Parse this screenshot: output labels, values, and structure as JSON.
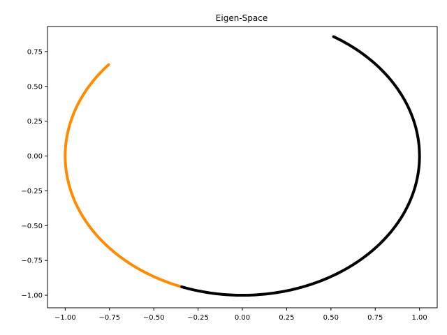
{
  "chart_data": {
    "type": "scatter",
    "title": "Eigen-Space",
    "xlabel": "",
    "ylabel": "",
    "xlim": [
      -1.1,
      1.1
    ],
    "ylim": [
      -1.09,
      0.93
    ],
    "grid": false,
    "x_ticks": [
      -1.0,
      -0.75,
      -0.5,
      -0.25,
      0.0,
      0.25,
      0.5,
      0.75,
      1.0
    ],
    "x_tick_labels": [
      "−1.00",
      "−0.75",
      "−0.50",
      "−0.25",
      "0.00",
      "0.25",
      "0.50",
      "0.75",
      "1.00"
    ],
    "y_ticks": [
      -1.0,
      -0.75,
      -0.5,
      -0.25,
      0.0,
      0.25,
      0.5,
      0.75
    ],
    "y_tick_labels": [
      "−1.00",
      "−0.75",
      "−0.50",
      "−0.25",
      "0.00",
      "0.25",
      "0.50",
      "0.75"
    ],
    "series": [
      {
        "color": "#ff8c00",
        "shape": "unit-circle arc",
        "angle_start_deg": 139,
        "angle_end_deg": 250,
        "endpoints": [
          [
            -0.75,
            0.66
          ],
          [
            -0.34,
            -0.94
          ]
        ]
      },
      {
        "color": "#000000",
        "shape": "unit-circle arc",
        "angle_start_deg": 250,
        "angle_end_deg": 419,
        "endpoints": [
          [
            -0.34,
            -0.94
          ],
          [
            0.51,
            0.86
          ]
        ]
      }
    ]
  }
}
